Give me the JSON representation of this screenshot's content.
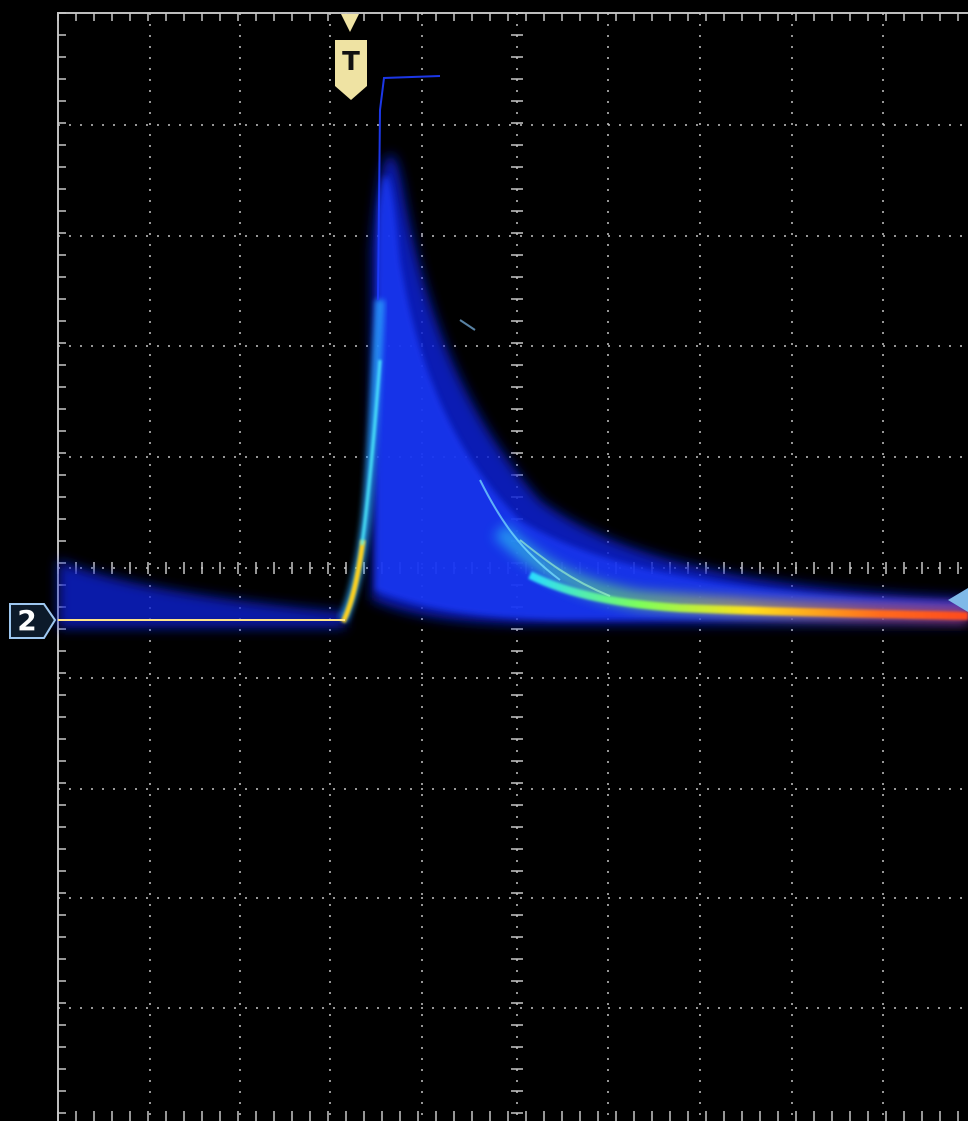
{
  "channel_marker": {
    "label": "2",
    "color": "#9ec7f0"
  },
  "trigger_marker": {
    "label": "T",
    "color": "#efe3a3"
  },
  "trigger_level_marker": {
    "color": "#7fb9e8"
  },
  "colors": {
    "background": "#000000",
    "graticule": "#c8c8c8",
    "persistence_low": "#0a1ec8",
    "persistence_mid": "#2aa8ff",
    "persistence_high": "#f3e21a",
    "persistence_max": "#ff3a1a"
  }
}
